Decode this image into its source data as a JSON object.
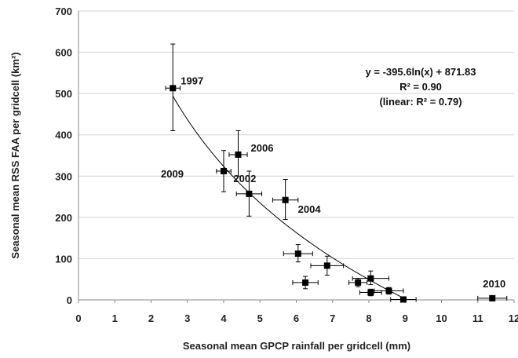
{
  "chart_data": {
    "type": "scatter",
    "title": "",
    "xlabel": "Seasonal mean GPCP rainfall per gridcell (mm)",
    "ylabel": "Seasonal mean RSS FAA per gridcell (km²)",
    "xlim": [
      0,
      12
    ],
    "ylim": [
      0,
      700
    ],
    "xticks": [
      "0",
      "1",
      "2",
      "3",
      "4",
      "5",
      "6",
      "7",
      "8",
      "9",
      "10",
      "11",
      "12"
    ],
    "yticks": [
      "0",
      "100",
      "200",
      "300",
      "400",
      "500",
      "600",
      "700"
    ],
    "grid": "horizontal",
    "colors": {
      "marker": "#000000",
      "grid": "#d4d4d4",
      "curve": "#000000"
    },
    "points": [
      {
        "x": 2.6,
        "y": 513,
        "xerr": 0.2,
        "ylo": 410,
        "yhi": 620,
        "label": "1997"
      },
      {
        "x": 4.4,
        "y": 352,
        "xerr": 0.25,
        "ylo": 300,
        "yhi": 410,
        "label": "2006"
      },
      {
        "x": 4.0,
        "y": 312,
        "xerr": 0.2,
        "ylo": 262,
        "yhi": 362,
        "label": "2009"
      },
      {
        "x": 4.7,
        "y": 257,
        "xerr": 0.35,
        "ylo": 203,
        "yhi": 312,
        "label": "2002"
      },
      {
        "x": 5.7,
        "y": 242,
        "xerr": 0.35,
        "ylo": 195,
        "yhi": 292,
        "label": "2004"
      },
      {
        "x": 6.05,
        "y": 112,
        "xerr": 0.4,
        "ylo": 92,
        "yhi": 134,
        "label": ""
      },
      {
        "x": 6.25,
        "y": 42,
        "xerr": 0.35,
        "ylo": 27,
        "yhi": 57,
        "label": ""
      },
      {
        "x": 6.85,
        "y": 83,
        "xerr": 0.45,
        "ylo": 60,
        "yhi": 106,
        "label": ""
      },
      {
        "x": 7.7,
        "y": 42,
        "xerr": 0.25,
        "ylo": 32,
        "yhi": 52,
        "label": ""
      },
      {
        "x": 8.05,
        "y": 52,
        "xerr": 0.5,
        "ylo": 37,
        "yhi": 70,
        "label": ""
      },
      {
        "x": 8.05,
        "y": 18,
        "xerr": 0.3,
        "ylo": 10,
        "yhi": 26,
        "label": ""
      },
      {
        "x": 8.55,
        "y": 22,
        "xerr": 0.4,
        "ylo": 14,
        "yhi": 30,
        "label": ""
      },
      {
        "x": 8.95,
        "y": 1,
        "xerr": 0.35,
        "ylo": 0,
        "yhi": 5,
        "label": ""
      },
      {
        "x": 11.4,
        "y": 4,
        "xerr": 0.4,
        "ylo": 0,
        "yhi": 8,
        "label": "2010"
      }
    ],
    "fit": {
      "type": "log",
      "a": -395.6,
      "b": 871.83,
      "x_range": [
        2.6,
        9.0
      ]
    },
    "annotations": [
      "y = -395.6ln(x) + 871.83",
      "R² = 0.90",
      "(linear: R² = 0.79)"
    ]
  }
}
